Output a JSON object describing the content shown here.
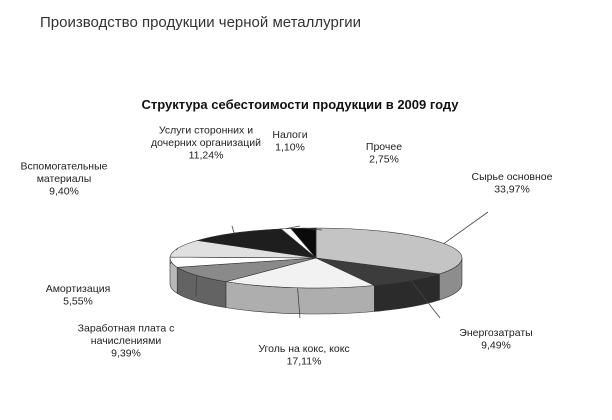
{
  "page": {
    "heading": "Производство продукции черной металлургии"
  },
  "chart_data": {
    "type": "pie",
    "title": "Структура себестоимости продукции в 2009 году",
    "three_d": true,
    "legend": "none (data labels with leader lines)",
    "slices": [
      {
        "label_lines": [
          "Сырье основное"
        ],
        "value_text": "33,97%",
        "value": 33.97,
        "color": "#c4c4c4"
      },
      {
        "label_lines": [
          "Энергозатраты"
        ],
        "value_text": "9,49%",
        "value": 9.49,
        "color": "#3c3c3c"
      },
      {
        "label_lines": [
          "Уголь на кокс, кокс"
        ],
        "value_text": "17,11%",
        "value": 17.11,
        "color": "#f2f2f2"
      },
      {
        "label_lines": [
          "Заработная плата с",
          "начислениями"
        ],
        "value_text": "9,39%",
        "value": 9.39,
        "color": "#8a8a8a"
      },
      {
        "label_lines": [
          "Амортизация"
        ],
        "value_text": "5,55%",
        "value": 5.55,
        "color": "#ffffff"
      },
      {
        "label_lines": [
          "Вспомогательные",
          "материалы"
        ],
        "value_text": "9,40%",
        "value": 9.4,
        "color": "#e0e0e0"
      },
      {
        "label_lines": [
          "Услуги сторонних и",
          "дочерних организаций"
        ],
        "value_text": "11,24%",
        "value": 11.24,
        "color": "#1e1e1e"
      },
      {
        "label_lines": [
          "Налоги"
        ],
        "value_text": "1,10%",
        "value": 1.1,
        "color": "#ffffff"
      },
      {
        "label_lines": [
          "Прочее"
        ],
        "value_text": "2,75%",
        "value": 2.75,
        "color": "#0a0a0a"
      }
    ]
  }
}
